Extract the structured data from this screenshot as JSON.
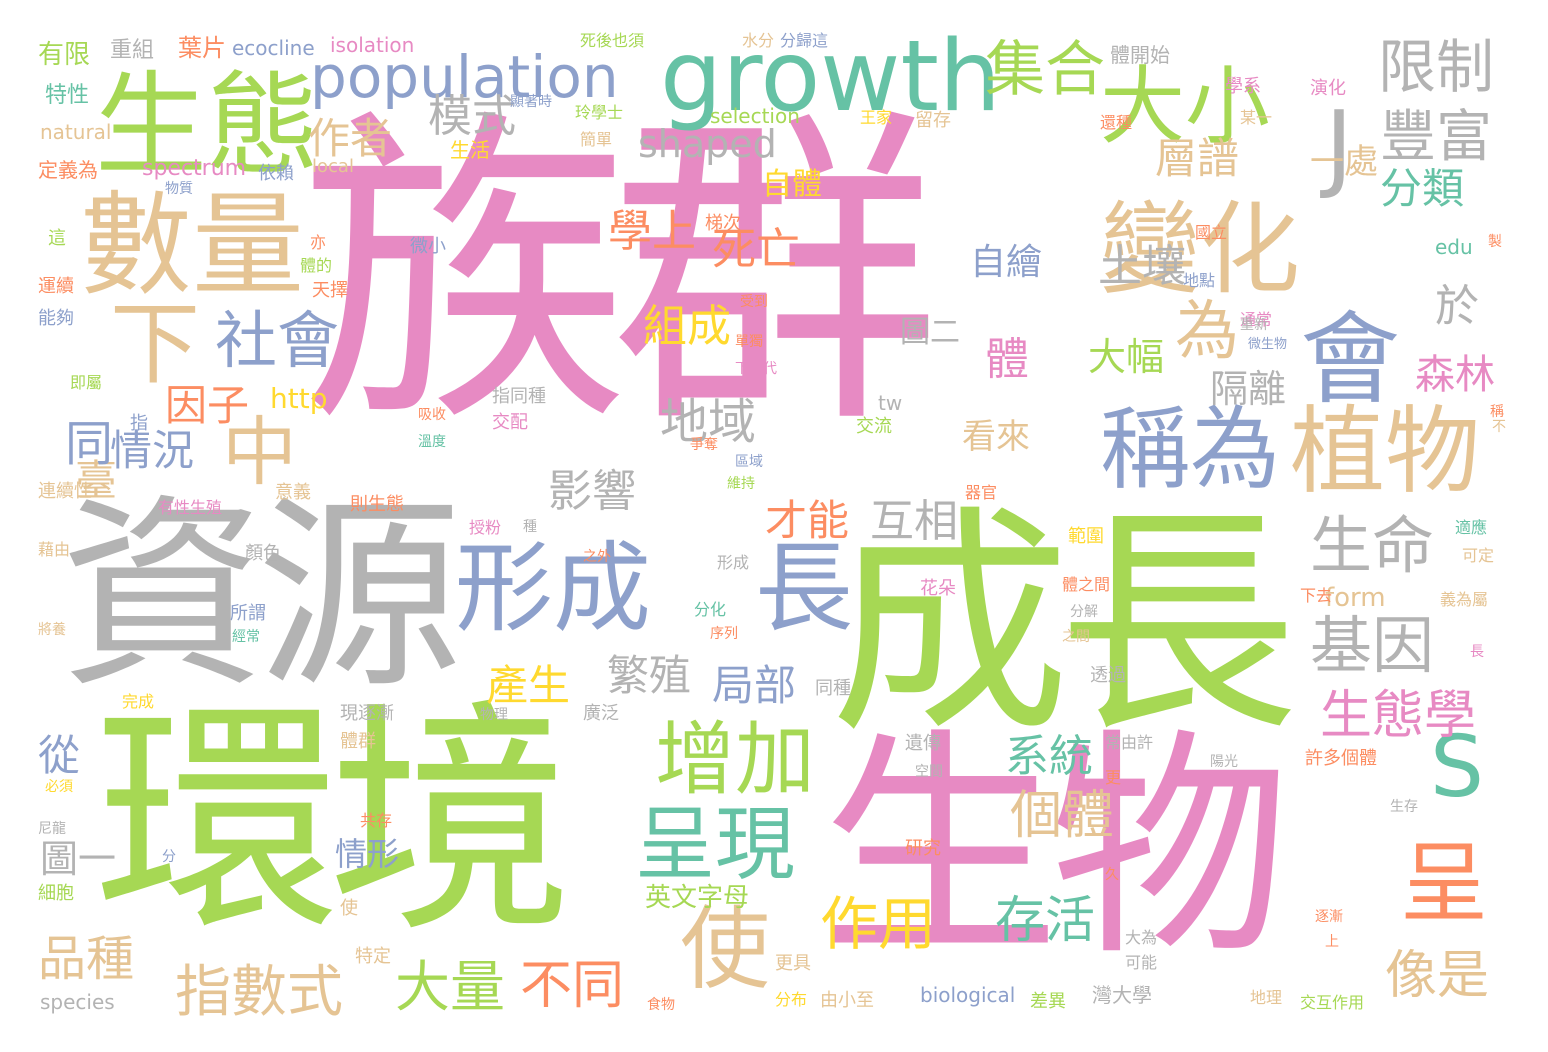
{
  "palette": {
    "pink": "#e78ac3",
    "green": "#a6d854",
    "grey": "#b3b3b3",
    "tan": "#e5c494",
    "blue": "#8da0cb",
    "teal": "#66c2a5",
    "orange": "#fc8d62",
    "yellow": "#ffd92f"
  },
  "words": [
    "族群",
    "成長",
    "資源",
    "環境",
    "生物",
    "生態",
    "數量",
    "growth",
    "population",
    "大小",
    "集合",
    "會",
    "變化",
    "植物",
    "稱為",
    "形成",
    "長",
    "中",
    "下",
    "社會",
    "增加",
    "呈現",
    "使",
    "呈",
    "S",
    "J",
    "豐富",
    "限制",
    "模式",
    "作者",
    "shaped",
    "層譜",
    "一處",
    "分類",
    "基因",
    "生命",
    "生態學",
    "土壤",
    "為",
    "於",
    "地域",
    "影響",
    "互相",
    "才能",
    "死亡",
    "學上",
    "組成",
    "自體",
    "自繪",
    "體",
    "大幅",
    "隔離",
    "森林",
    "局部",
    "繁殖",
    "產生",
    "系統",
    "個體",
    "存活",
    "作用",
    "大量",
    "不同",
    "指數式",
    "品種",
    "像是",
    "英文字母",
    "情形",
    "圖一",
    "從",
    "臺",
    "因子",
    "同",
    "情況",
    "http",
    "form",
    "看來",
    "圖二",
    "有限",
    "重組",
    "葉片",
    "ecocline",
    "isolation",
    "死後也須",
    "水分",
    "分歸這",
    "體開始",
    "學系",
    "演化",
    "特性",
    "顯著時",
    "玲學士",
    "selection",
    "王家",
    "留存",
    "還種",
    "某一",
    "natural",
    "生活",
    "簡單",
    "定義為",
    "spectrum",
    "依賴",
    "local",
    "物質",
    "微小",
    "梯次",
    "國立",
    "這",
    "亦",
    "體的",
    "edu",
    "運續",
    "天擇",
    "地點",
    "能夠",
    "受到",
    "通常",
    "即屬",
    "單獨",
    "下一代",
    "微生物",
    "稱",
    "指同種",
    "指",
    "吸收",
    "溫度",
    "交配",
    "tw",
    "交流",
    "爭奪",
    "區域",
    "連續性",
    "意義",
    "維持",
    "器官",
    "有性生殖",
    "則生態",
    "藉由",
    "顏色",
    "授粉",
    "種",
    "範圍",
    "適應",
    "可定",
    "之外",
    "形成",
    "花朵",
    "分化",
    "所謂",
    "序列",
    "體之間",
    "下去",
    "義為屬",
    "分解",
    "將養",
    "經常",
    "之間",
    "完成",
    "同種",
    "透過",
    "物理",
    "廣泛",
    "現逐漸",
    "常由許",
    "體群",
    "遺傳",
    "必須",
    "空間",
    "陽光",
    "許多個體",
    "更",
    "生存",
    "尼龍",
    "共存",
    "研究",
    "分",
    "細胞",
    "久",
    "使",
    "特定",
    "大為",
    "可能",
    "更具",
    "上",
    "分布",
    "由小至",
    "差異",
    "species",
    "biological",
    "灣大學",
    "地理",
    "交互作用",
    "食物",
    "不",
    "重新",
    "製",
    "長",
    "逐漸"
  ]
}
